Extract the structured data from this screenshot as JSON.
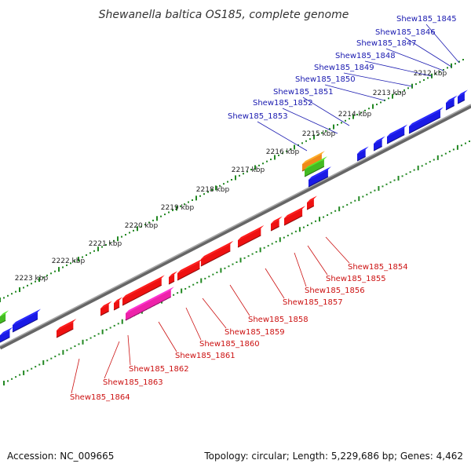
{
  "title": "Shewanella baltica OS185, complete genome",
  "accession": "Accession: NC_009665",
  "topology": "Topology: circular; Length: 5,229,686 bp; Genes: 4,462",
  "colors": {
    "forward_gene": "#1a1ae6",
    "reverse_gene": "#ee1111",
    "pink_gene": "#ee22aa",
    "orange_gene": "#f08a1a",
    "green_gene": "#44bb22",
    "backbone": "#888888",
    "ruler": "#228822",
    "forward_label": "#1a1ab0",
    "reverse_label": "#cc1111"
  },
  "ticks": [
    "2212 kbp",
    "2213 kbp",
    "2214 kbp",
    "2215 kbp",
    "2216 kbp",
    "2217 kbp",
    "2218 kbp",
    "2219 kbp",
    "2220 kbp",
    "2221 kbp",
    "2222 kbp",
    "2223 kbp"
  ],
  "forward_labels": [
    "Shew185_1845",
    "Shew185_1846",
    "Shew185_1847",
    "Shew185_1848",
    "Shew185_1849",
    "Shew185_1850",
    "Shew185_1851",
    "Shew185_1852",
    "Shew185_1853"
  ],
  "reverse_labels": [
    "Shew185_1854",
    "Shew185_1855",
    "Shew185_1856",
    "Shew185_1857",
    "Shew185_1858",
    "Shew185_1859",
    "Shew185_1860",
    "Shew185_1861",
    "Shew185_1862",
    "Shew185_1863",
    "Shew185_1864"
  ]
}
